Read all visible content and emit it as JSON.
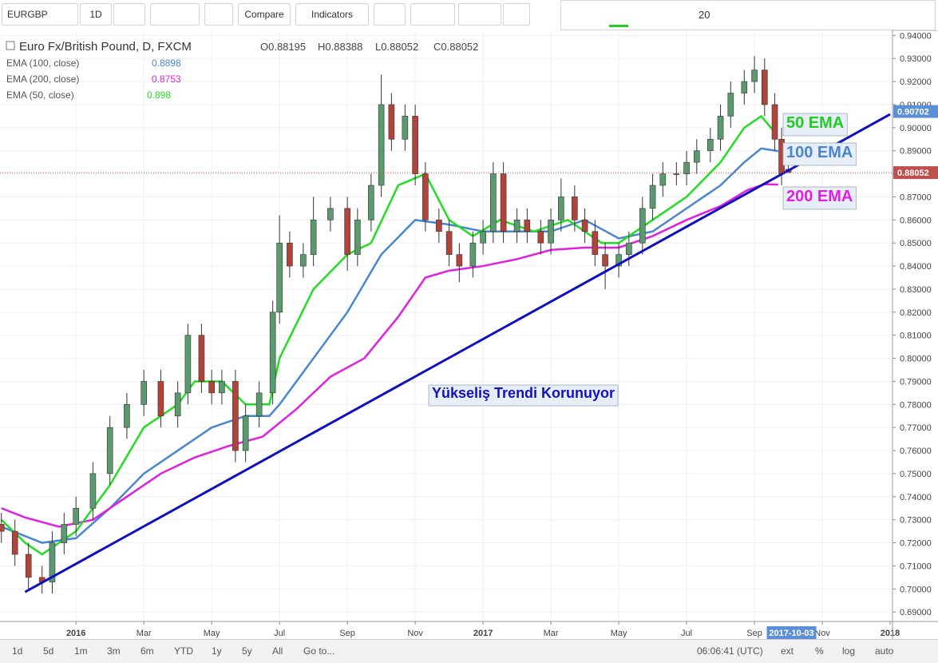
{
  "toolbar": {
    "symbol": "EURGBP",
    "interval": "1D",
    "compare": "Compare",
    "indicators": "Indicators",
    "line_width": "20"
  },
  "chart_data": {
    "type": "candlestick",
    "title": "Euro Fx/British Pound, D, FXCM",
    "ohlc_labels": [
      "O0.88195",
      "H0.88388",
      "L0.88052",
      "C0.88052"
    ],
    "x": [
      -2.2,
      -1.8,
      -1.4,
      -1.0,
      -0.7,
      -0.35,
      0,
      0.5,
      1,
      1.5,
      2,
      2.5,
      3,
      3.3,
      3.7,
      4,
      4.3,
      4.7,
      5,
      5.4,
      5.8,
      6,
      6.3,
      6.7,
      7,
      7.5,
      8,
      8.3,
      8.7,
      9,
      9.3,
      9.7,
      10,
      10.3,
      10.7,
      11,
      11.3,
      11.7,
      12,
      12.3,
      12.6,
      13,
      13.3,
      13.7,
      14,
      14.3,
      14.7,
      15,
      15.3,
      15.6,
      16,
      16.3,
      16.7,
      17,
      17.3,
      17.7,
      18,
      18.3,
      18.7,
      19,
      19.3,
      19.7,
      20,
      20.3,
      20.6,
      20.8,
      21.0
    ],
    "open": [
      0.728,
      0.725,
      0.715,
      0.705,
      0.703,
      0.72,
      0.728,
      0.735,
      0.75,
      0.77,
      0.78,
      0.79,
      0.775,
      0.785,
      0.81,
      0.79,
      0.785,
      0.79,
      0.76,
      0.775,
      0.785,
      0.82,
      0.85,
      0.84,
      0.845,
      0.86,
      0.865,
      0.845,
      0.86,
      0.875,
      0.91,
      0.895,
      0.905,
      0.88,
      0.86,
      0.855,
      0.845,
      0.84,
      0.85,
      0.855,
      0.88,
      0.855,
      0.86,
      0.855,
      0.85,
      0.86,
      0.87,
      0.86,
      0.855,
      0.845,
      0.84,
      0.845,
      0.85,
      0.865,
      0.875,
      0.88,
      0.88,
      0.885,
      0.89,
      0.895,
      0.905,
      0.915,
      0.92,
      0.925,
      0.91,
      0.895,
      0.88195
    ],
    "high": [
      0.733,
      0.73,
      0.72,
      0.71,
      0.725,
      0.733,
      0.74,
      0.755,
      0.775,
      0.785,
      0.795,
      0.795,
      0.79,
      0.815,
      0.815,
      0.795,
      0.795,
      0.795,
      0.78,
      0.79,
      0.825,
      0.862,
      0.855,
      0.85,
      0.87,
      0.87,
      0.87,
      0.865,
      0.88,
      0.923,
      0.915,
      0.91,
      0.91,
      0.885,
      0.865,
      0.86,
      0.85,
      0.855,
      0.86,
      0.885,
      0.885,
      0.865,
      0.865,
      0.86,
      0.865,
      0.878,
      0.875,
      0.865,
      0.86,
      0.85,
      0.85,
      0.855,
      0.87,
      0.88,
      0.885,
      0.885,
      0.89,
      0.895,
      0.9,
      0.91,
      0.92,
      0.925,
      0.931,
      0.93,
      0.915,
      0.9,
      0.88388
    ],
    "low": [
      0.72,
      0.71,
      0.7,
      0.698,
      0.698,
      0.715,
      0.723,
      0.73,
      0.745,
      0.765,
      0.775,
      0.77,
      0.77,
      0.78,
      0.785,
      0.78,
      0.78,
      0.755,
      0.755,
      0.77,
      0.78,
      0.815,
      0.835,
      0.835,
      0.84,
      0.855,
      0.838,
      0.84,
      0.855,
      0.87,
      0.89,
      0.89,
      0.875,
      0.855,
      0.85,
      0.84,
      0.833,
      0.835,
      0.845,
      0.85,
      0.85,
      0.85,
      0.85,
      0.845,
      0.845,
      0.855,
      0.855,
      0.85,
      0.84,
      0.83,
      0.835,
      0.84,
      0.845,
      0.86,
      0.87,
      0.875,
      0.875,
      0.88,
      0.885,
      0.89,
      0.9,
      0.91,
      0.915,
      0.905,
      0.89,
      0.875,
      0.88052
    ],
    "close": [
      0.725,
      0.715,
      0.705,
      0.703,
      0.72,
      0.728,
      0.735,
      0.75,
      0.77,
      0.78,
      0.79,
      0.775,
      0.785,
      0.81,
      0.79,
      0.785,
      0.79,
      0.76,
      0.775,
      0.785,
      0.82,
      0.85,
      0.84,
      0.845,
      0.86,
      0.865,
      0.845,
      0.86,
      0.875,
      0.91,
      0.895,
      0.905,
      0.88,
      0.86,
      0.855,
      0.845,
      0.84,
      0.85,
      0.855,
      0.88,
      0.855,
      0.86,
      0.855,
      0.85,
      0.86,
      0.87,
      0.86,
      0.855,
      0.845,
      0.84,
      0.845,
      0.85,
      0.865,
      0.875,
      0.88,
      0.88,
      0.885,
      0.89,
      0.895,
      0.905,
      0.915,
      0.92,
      0.925,
      0.91,
      0.895,
      0.88,
      0.88052
    ],
    "up_color": "#5a9a6e",
    "down_color": "#b0443a",
    "series": [
      {
        "name": "EMA (100, close)",
        "color": "#4a86d0",
        "last": 0.8898,
        "x": [
          -2.2,
          -1,
          0,
          1,
          2,
          3,
          4,
          5,
          5.7,
          6,
          7,
          8,
          9,
          10,
          11,
          12,
          13,
          14,
          15,
          16,
          17,
          18,
          19,
          19.7,
          20.2,
          20.7
        ],
        "values": [
          0.727,
          0.72,
          0.722,
          0.735,
          0.75,
          0.76,
          0.77,
          0.775,
          0.775,
          0.78,
          0.8,
          0.82,
          0.845,
          0.86,
          0.858,
          0.855,
          0.855,
          0.855,
          0.86,
          0.852,
          0.855,
          0.865,
          0.875,
          0.885,
          0.891,
          0.8898
        ]
      },
      {
        "name": "EMA (200, close)",
        "color": "#e020e0",
        "last": 0.8753,
        "x": [
          -2.2,
          -1.5,
          -0.5,
          0.5,
          1.5,
          2.5,
          3.5,
          4.5,
          5.5,
          6.5,
          7.5,
          8.5,
          9.5,
          10.3,
          11,
          12,
          13,
          14,
          15,
          16,
          17,
          18,
          19,
          19.8,
          20.3,
          20.7
        ],
        "values": [
          0.735,
          0.731,
          0.727,
          0.73,
          0.74,
          0.75,
          0.757,
          0.762,
          0.766,
          0.778,
          0.792,
          0.8,
          0.818,
          0.835,
          0.838,
          0.84,
          0.843,
          0.847,
          0.848,
          0.848,
          0.853,
          0.86,
          0.866,
          0.873,
          0.8755,
          0.8753
        ]
      },
      {
        "name": "EMA (50, close)",
        "color": "#22dd22",
        "last": 0.898,
        "x": [
          -2.2,
          -1.5,
          -1,
          0,
          1,
          2,
          3,
          3.5,
          4.3,
          5,
          5.7,
          6,
          7,
          8,
          8.7,
          9.5,
          10.3,
          11,
          11.7,
          12.5,
          13.5,
          14.5,
          15.5,
          16,
          17,
          18,
          19,
          19.7,
          20.2,
          20.6
        ],
        "values": [
          0.73,
          0.72,
          0.715,
          0.725,
          0.745,
          0.77,
          0.78,
          0.79,
          0.79,
          0.78,
          0.78,
          0.8,
          0.83,
          0.845,
          0.85,
          0.875,
          0.88,
          0.86,
          0.853,
          0.86,
          0.855,
          0.86,
          0.85,
          0.85,
          0.86,
          0.87,
          0.885,
          0.9,
          0.905,
          0.898
        ]
      }
    ],
    "trendline": {
      "color": "#1010c0",
      "x": [
        -1.5,
        24
      ],
      "y": [
        0.6987,
        0.9058
      ]
    },
    "annotations": [
      {
        "text": "50 EMA",
        "color": "#22cc22"
      },
      {
        "text": "100 EMA",
        "color": "#4a86d0"
      },
      {
        "text": "200 EMA",
        "color": "#e020e0"
      },
      {
        "text": "Yükseliş Trendi Korunuyor",
        "color": "#1010c0"
      }
    ],
    "price_markers": [
      {
        "value": 0.90702,
        "color": "#5b8fd6"
      },
      {
        "value": 0.88052,
        "color": "#c0504d"
      }
    ],
    "date_marker": {
      "value": 21.07,
      "label": "2017-10-03"
    },
    "xlim": [
      -2.24,
      24.07
    ],
    "ylim": [
      0.6859,
      0.9422
    ],
    "yticks": [
      {
        "value": 0.69,
        "label": "0.69000"
      },
      {
        "value": 0.7,
        "label": "0.70000"
      },
      {
        "value": 0.71,
        "label": "0.71000"
      },
      {
        "value": 0.72,
        "label": "0.72000"
      },
      {
        "value": 0.73,
        "label": "0.73000"
      },
      {
        "value": 0.74,
        "label": "0.74000"
      },
      {
        "value": 0.75,
        "label": "0.75000"
      },
      {
        "value": 0.76,
        "label": "0.76000"
      },
      {
        "value": 0.77,
        "label": "0.77000"
      },
      {
        "value": 0.78,
        "label": "0.78000"
      },
      {
        "value": 0.79,
        "label": "0.79000"
      },
      {
        "value": 0.8,
        "label": "0.80000"
      },
      {
        "value": 0.81,
        "label": "0.81000"
      },
      {
        "value": 0.82,
        "label": "0.82000"
      },
      {
        "value": 0.83,
        "label": "0.83000"
      },
      {
        "value": 0.84,
        "label": "0.84000"
      },
      {
        "value": 0.85,
        "label": "0.85000"
      },
      {
        "value": 0.86,
        "label": "0.86000"
      },
      {
        "value": 0.87,
        "label": "0.87000"
      },
      {
        "value": 0.88,
        "label": "0.88000"
      },
      {
        "value": 0.89,
        "label": "0.89000"
      },
      {
        "value": 0.9,
        "label": "0.90000"
      },
      {
        "value": 0.91,
        "label": "0.91000"
      },
      {
        "value": 0.92,
        "label": "0.92000"
      },
      {
        "value": 0.93,
        "label": "0.93000"
      },
      {
        "value": 0.94,
        "label": "0.94000"
      }
    ],
    "xticks": [
      {
        "value": 0,
        "label": "2016"
      },
      {
        "value": 2,
        "label": "Mar"
      },
      {
        "value": 4,
        "label": "May"
      },
      {
        "value": 6,
        "label": "Jul"
      },
      {
        "value": 8,
        "label": "Sep"
      },
      {
        "value": 10,
        "label": "Nov"
      },
      {
        "value": 12,
        "label": "2017"
      },
      {
        "value": 14,
        "label": "Mar"
      },
      {
        "value": 16,
        "label": "May"
      },
      {
        "value": 18,
        "label": "Jul"
      },
      {
        "value": 20,
        "label": "Sep"
      },
      {
        "value": 22,
        "label": "Nov"
      },
      {
        "value": 24,
        "label": "2018"
      }
    ],
    "grid": true
  },
  "bottom_bar": {
    "ranges": [
      "1d",
      "5d",
      "1m",
      "3m",
      "6m",
      "YTD",
      "1y",
      "5y",
      "All",
      "Go to..."
    ],
    "time": "06:06:41 (UTC)",
    "options": [
      "ext",
      "%",
      "log",
      "auto"
    ]
  }
}
